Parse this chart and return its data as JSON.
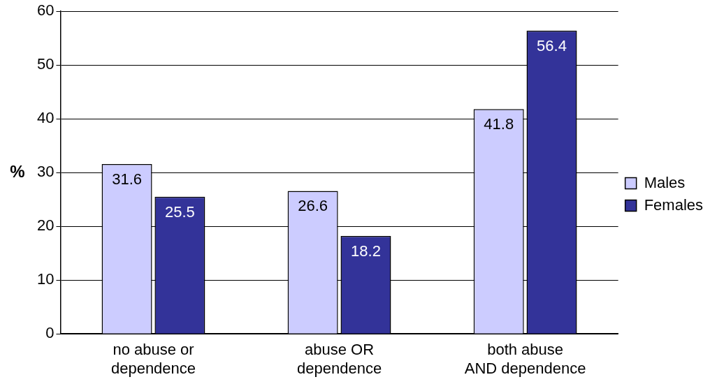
{
  "chart_data": {
    "type": "bar",
    "ylabel": "%",
    "categories": [
      "no abuse or dependence",
      "abuse OR dependence",
      "both abuse AND dependence"
    ],
    "series": [
      {
        "name": "Males",
        "color": "#ccccff",
        "values": [
          31.6,
          26.6,
          41.8
        ]
      },
      {
        "name": "Females",
        "color": "#333399",
        "values": [
          25.5,
          18.2,
          56.4
        ]
      }
    ],
    "ylim": [
      0,
      60
    ],
    "yticks": [
      0,
      10,
      20,
      30,
      40,
      50,
      60
    ],
    "grid": "y",
    "legend": "right",
    "data_labels": true
  }
}
